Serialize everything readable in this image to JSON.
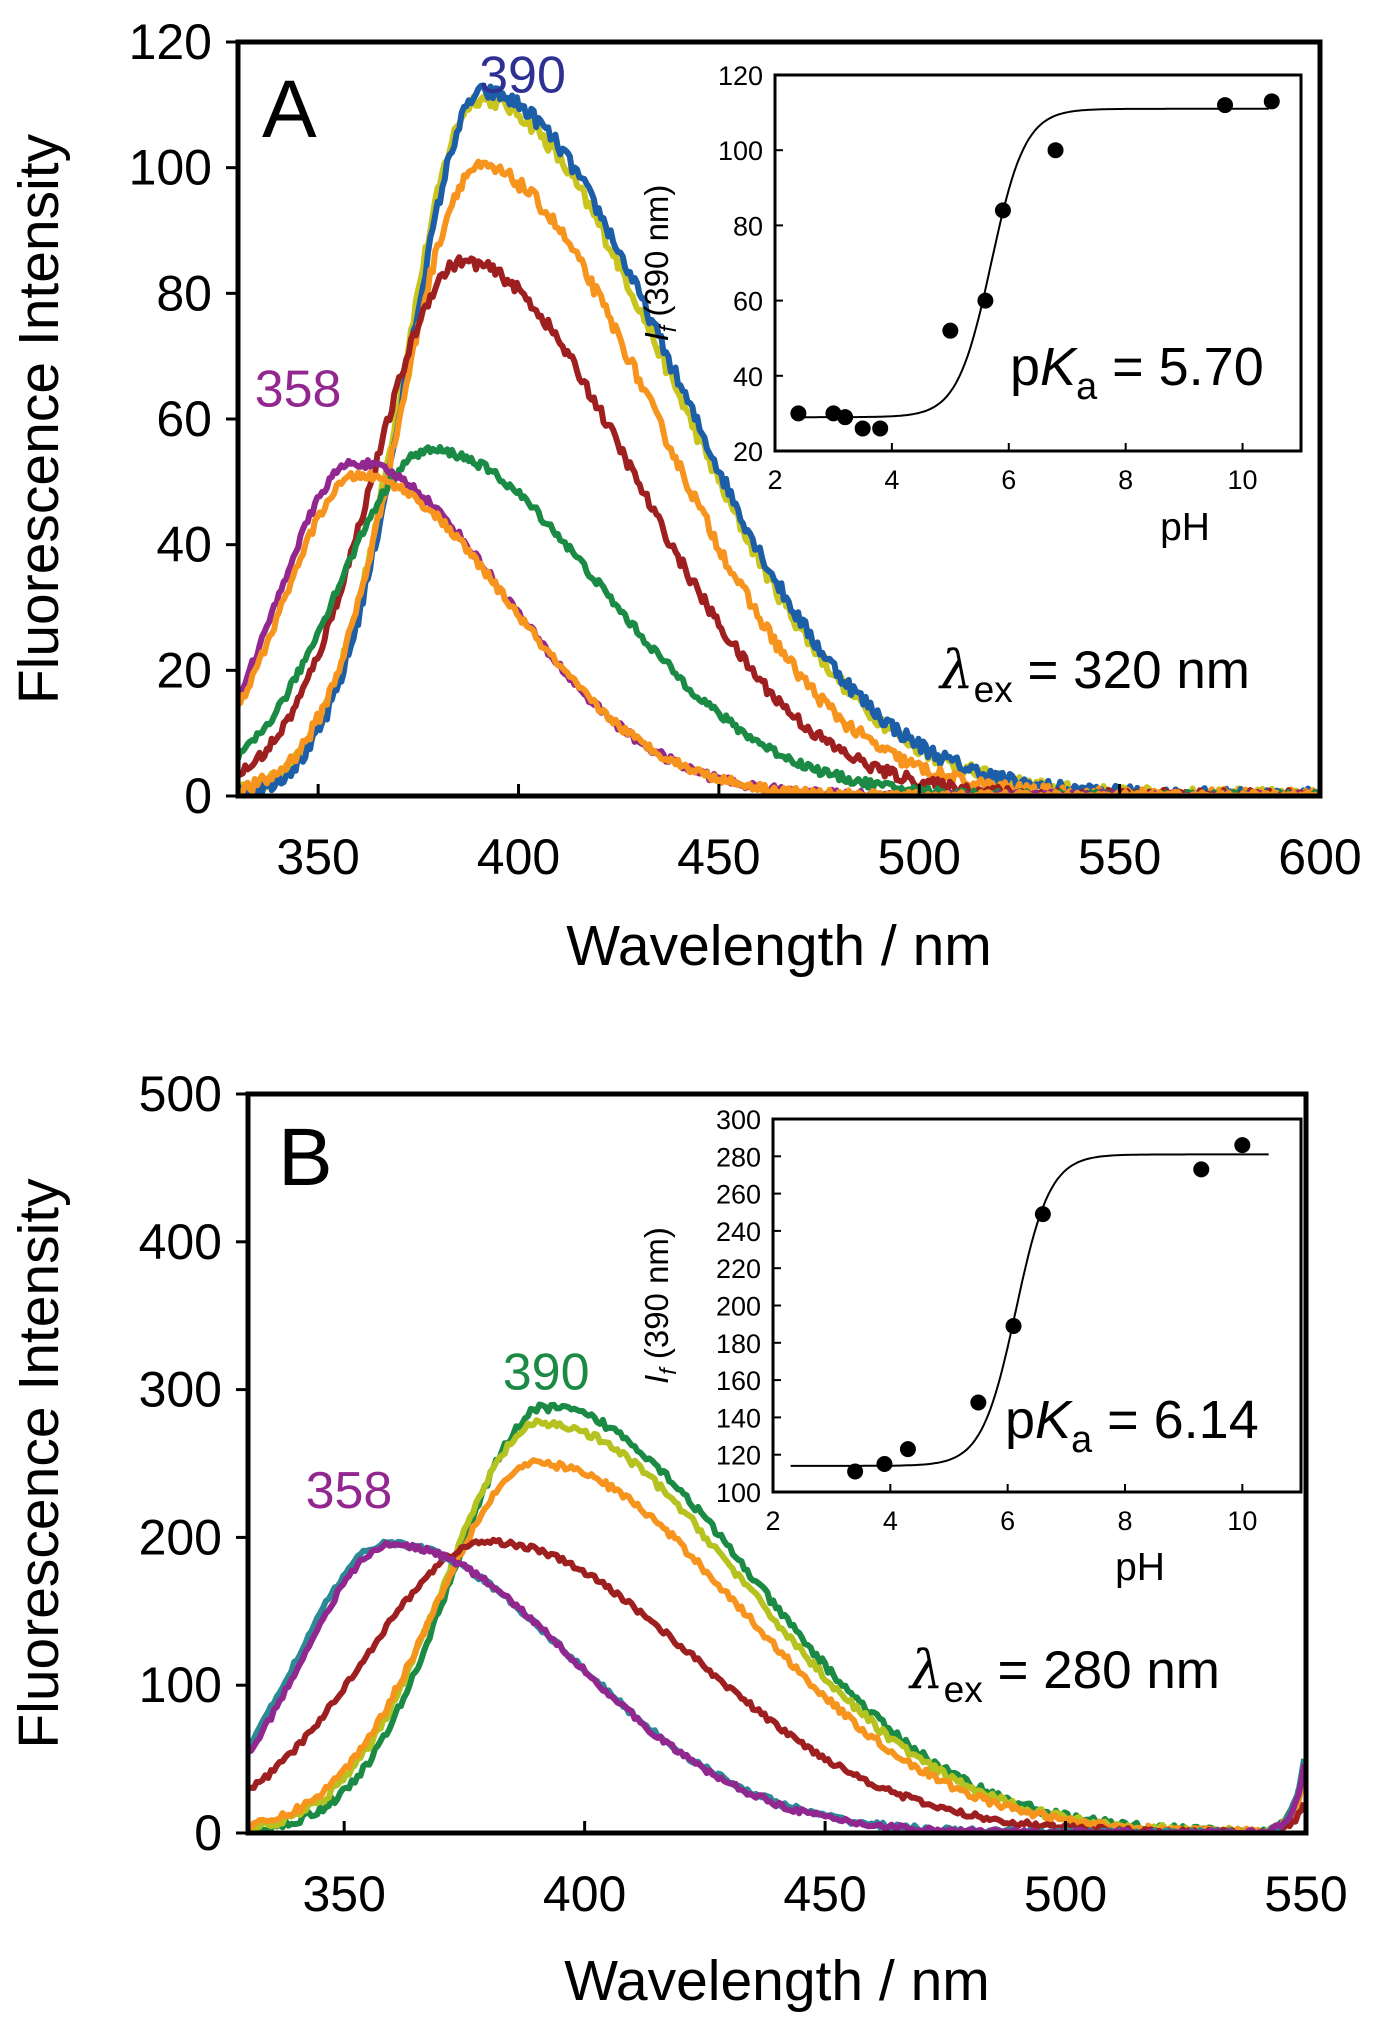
{
  "chart_data": [
    {
      "panel": "A",
      "type": "line",
      "xlabel": "Wavelength / nm",
      "ylabel": "Fluorescence Intensity",
      "xlim": [
        330,
        600
      ],
      "ylim": [
        0,
        120
      ],
      "xticks": [
        350,
        400,
        450,
        500,
        550,
        600
      ],
      "yticks": [
        0,
        20,
        40,
        60,
        80,
        100,
        120
      ],
      "peak_labels": [
        {
          "text": "390",
          "color": "#2e3192",
          "at_x": 401,
          "at_y": 112
        },
        {
          "text": "358",
          "color": "#92278f",
          "at_x": 345,
          "at_y": 62
        }
      ],
      "excitation_label": {
        "symbol": "λ",
        "subscript": "ex",
        "text": " = 320 nm"
      },
      "series": [
        {
          "color": "#c9c51e",
          "peak_x": 390,
          "peak_y": 111,
          "left_width": 22,
          "right_width": 56,
          "tail_end": 0.5
        },
        {
          "color": "#1c5fa8",
          "peak_x": 391,
          "peak_y": 112,
          "left_width": 22,
          "right_width": 56,
          "tail_end": 0.5
        },
        {
          "color": "#f7941d",
          "peak_x": 390,
          "peak_y": 100,
          "left_width": 23,
          "right_width": 52,
          "tail_end": 0.5
        },
        {
          "color": "#9e1f1f",
          "peak_x": 386,
          "peak_y": 85,
          "left_width": 26,
          "right_width": 50,
          "tail_end": 0.5
        },
        {
          "color": "#1a8a44",
          "peak_x": 378,
          "peak_y": 55,
          "left_width": 27,
          "right_width": 50,
          "tail_end": 0.5
        },
        {
          "color": "#92278f",
          "peak_x": 359,
          "peak_y": 53,
          "left_width": 22,
          "right_width": 44,
          "tail_end": 0.5
        },
        {
          "color": "#f7941d",
          "peak_x": 360,
          "peak_y": 51,
          "left_width": 22,
          "right_width": 44,
          "tail_end": 0.5
        }
      ],
      "inset": {
        "xlabel": "pH",
        "ylabel": "I_f (390 nm)",
        "ylabel_main": "I",
        "ylabel_sub": "f",
        "ylabel_rest": " (390 nm)",
        "xlim": [
          2,
          11
        ],
        "ylim": [
          20,
          120
        ],
        "xticks": [
          2,
          4,
          6,
          8,
          10
        ],
        "yticks": [
          20,
          40,
          60,
          80,
          100,
          120
        ],
        "points": [
          [
            2.4,
            30
          ],
          [
            3.0,
            30
          ],
          [
            3.2,
            29
          ],
          [
            3.5,
            26
          ],
          [
            3.8,
            26
          ],
          [
            5.0,
            52
          ],
          [
            5.6,
            60
          ],
          [
            5.9,
            84
          ],
          [
            6.8,
            100
          ],
          [
            9.7,
            112
          ],
          [
            10.5,
            113
          ]
        ],
        "fit": {
          "bottom": 29,
          "top": 111,
          "pKa": 5.7
        },
        "pka_label": {
          "prefix": "p",
          "K": "K",
          "sub": "a",
          "value": " = 5.70"
        }
      }
    },
    {
      "panel": "B",
      "type": "line",
      "xlabel": "Wavelength / nm",
      "ylabel": "Fluorescence Intensity",
      "xlim": [
        330,
        550
      ],
      "ylim": [
        0,
        500
      ],
      "xticks": [
        350,
        400,
        450,
        500,
        550
      ],
      "yticks": [
        0,
        100,
        200,
        300,
        400,
        500
      ],
      "peak_labels": [
        {
          "text": "390",
          "color": "#1a8a44",
          "at_x": 392,
          "at_y": 300
        },
        {
          "text": "358",
          "color": "#92278f",
          "at_x": 351,
          "at_y": 220
        }
      ],
      "excitation_label": {
        "symbol": "λ",
        "subscript": "ex",
        "text": " = 280 nm"
      },
      "series": [
        {
          "color": "#1a8a44",
          "peak_x": 392,
          "peak_y": 288,
          "left_width": 23,
          "right_width": 50,
          "tail_end": 55
        },
        {
          "color": "#b5c21f",
          "peak_x": 391,
          "peak_y": 277,
          "left_width": 24,
          "right_width": 50,
          "tail_end": 50
        },
        {
          "color": "#f7941d",
          "peak_x": 390,
          "peak_y": 250,
          "left_width": 25,
          "right_width": 50,
          "tail_end": 45
        },
        {
          "color": "#9e1f1f",
          "peak_x": 380,
          "peak_y": 197,
          "left_width": 30,
          "right_width": 50,
          "tail_end": 25
        },
        {
          "color": "#2b8a96",
          "peak_x": 359,
          "peak_y": 196,
          "left_width": 22,
          "right_width": 45,
          "tail_end": 60
        },
        {
          "color": "#92278f",
          "peak_x": 360,
          "peak_y": 195,
          "left_width": 22,
          "right_width": 44,
          "tail_end": 55
        }
      ],
      "inset": {
        "xlabel": "pH",
        "ylabel": "I_f (390 nm)",
        "ylabel_main": "I",
        "ylabel_sub": "f",
        "ylabel_rest": " (390 nm)",
        "xlim": [
          2,
          11
        ],
        "ylim": [
          100,
          300
        ],
        "xticks": [
          2,
          4,
          6,
          8,
          10
        ],
        "yticks": [
          100,
          120,
          140,
          160,
          180,
          200,
          220,
          240,
          260,
          280,
          300
        ],
        "points": [
          [
            3.4,
            111
          ],
          [
            3.9,
            115
          ],
          [
            4.3,
            123
          ],
          [
            5.5,
            148
          ],
          [
            6.1,
            189
          ],
          [
            6.6,
            249
          ],
          [
            9.3,
            273
          ],
          [
            10.0,
            286
          ]
        ],
        "fit": {
          "bottom": 114,
          "top": 281,
          "pKa": 6.14
        },
        "pka_label": {
          "prefix": "p",
          "K": "K",
          "sub": "a",
          "value": " = 6.14"
        }
      }
    }
  ]
}
